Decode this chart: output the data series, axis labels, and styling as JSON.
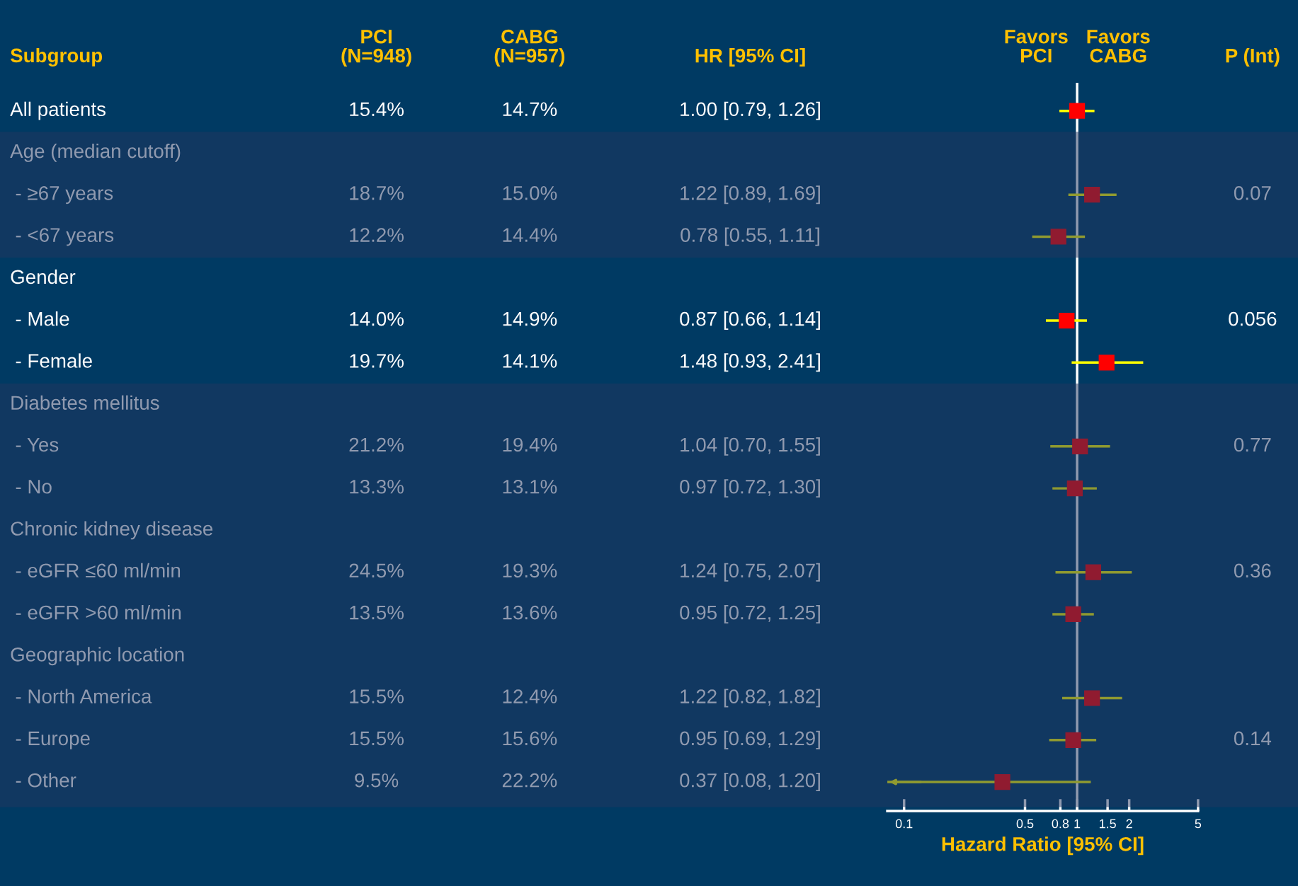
{
  "chart_data": [
    {
      "type": "other",
      "ylabel": "Subgroup",
      "categories": [
        "All patients",
        "Age (median cutoff)",
        "- ≥67 years",
        "- <67 years",
        "Gender",
        "- Male",
        "- Female",
        "Diabetes mellitus",
        "- Yes",
        "- No",
        "Chronic kidney disease",
        "- eGFR ≤60 ml/min",
        "- eGFR >60 ml/min",
        "Geographic location",
        "- North America",
        "- Europe",
        "- Other"
      ],
      "series": [
        {
          "name": "PCI\n(N=948)",
          "type": "other",
          "values": [
            15.4,
            null,
            18.7,
            12.2,
            null,
            14.0,
            19.7,
            null,
            21.2,
            13.3,
            null,
            24.5,
            13.5,
            null,
            15.5,
            15.5,
            9.5
          ],
          "value_labels": [
            "15.4%",
            null,
            "18.7%",
            "12.2%",
            null,
            "14.0%",
            "19.7%",
            null,
            "21.2%",
            "13.3%",
            null,
            "24.5%",
            "13.5%",
            null,
            "15.5%",
            "15.5%",
            "9.5%"
          ]
        },
        {
          "name": "CABG\n(N=957)",
          "type": "other",
          "values": [
            14.7,
            null,
            15.0,
            14.4,
            null,
            14.9,
            14.1,
            null,
            19.4,
            13.1,
            null,
            19.3,
            13.6,
            null,
            12.4,
            15.6,
            22.2
          ],
          "value_labels": [
            "14.7%",
            null,
            "15.0%",
            "14.4%",
            null,
            "14.9%",
            "14.1%",
            null,
            "19.4%",
            "13.1%",
            null,
            "19.3%",
            "13.6%",
            null,
            "12.4%",
            "15.6%",
            "22.2%"
          ]
        },
        {
          "name": "HR [95% CI]",
          "type": "other",
          "values": [
            1.0,
            null,
            1.22,
            0.78,
            null,
            0.87,
            1.48,
            null,
            1.04,
            0.97,
            null,
            1.24,
            0.95,
            null,
            1.22,
            0.95,
            0.37
          ],
          "value_labels": [
            "1.00 [0.79, 1.26]",
            null,
            "1.22 [0.89, 1.69]",
            "0.78 [0.55, 1.11]",
            null,
            "0.87 [0.66, 1.14]",
            "1.48 [0.93, 2.41]",
            null,
            "1.04 [0.70, 1.55]",
            "0.97 [0.72, 1.30]",
            null,
            "1.24 [0.75, 2.07]",
            "0.95 [0.72, 1.25]",
            null,
            "1.22 [0.82, 1.82]",
            "0.95 [0.69, 1.29]",
            "0.37 [0.08, 1.20]"
          ]
        },
        {
          "name": "P (Int)",
          "type": "other",
          "values": [
            null,
            null,
            0.07,
            null,
            null,
            0.056,
            null,
            null,
            0.77,
            null,
            null,
            0.36,
            null,
            null,
            null,
            0.14,
            null
          ],
          "value_labels": [
            null,
            null,
            "0.07",
            null,
            null,
            "0.056",
            null,
            null,
            "0.77",
            null,
            null,
            "0.36",
            null,
            null,
            null,
            "0.14",
            null
          ]
        }
      ]
    },
    {
      "type": "scatter",
      "orientation": "horizontal",
      "xlabel": "Hazard Ratio [95% CI]",
      "categories": [
        null,
        null,
        null,
        null,
        null,
        null,
        null,
        null,
        null,
        null,
        null,
        null,
        null,
        null,
        null,
        null,
        null
      ],
      "series": [
        {
          "color": "#ff0000",
          "values": [
            1.0,
            null,
            1.22,
            0.78,
            null,
            0.87,
            1.48,
            null,
            1.04,
            0.97,
            null,
            1.24,
            0.95,
            null,
            1.22,
            0.95,
            0.37
          ],
          "errors": [
            [
              0.79,
              1.26
            ],
            null,
            [
              0.89,
              1.69
            ],
            [
              0.55,
              1.11
            ],
            null,
            [
              0.66,
              1.14
            ],
            [
              0.93,
              2.41
            ],
            null,
            [
              0.7,
              1.55
            ],
            [
              0.72,
              1.3
            ],
            null,
            [
              0.75,
              2.07
            ],
            [
              0.72,
              1.25
            ],
            null,
            [
              0.82,
              1.82
            ],
            [
              0.69,
              1.29
            ],
            [
              0.08,
              1.2
            ]
          ]
        }
      ],
      "annotations": [
        "Favors\nPCI",
        "Favors\nCABG"
      ],
      "log": "x",
      "xlim": [
        0.08,
        5
      ],
      "xticks": [
        0.1,
        0.5,
        0.8,
        1,
        1.5,
        2,
        5
      ],
      "marker": "square",
      "grid": false,
      "legend": false,
      "ref_lines": [
        {
          "axis": "x",
          "value": 1,
          "color": "#ffffff"
        }
      ]
    }
  ]
}
